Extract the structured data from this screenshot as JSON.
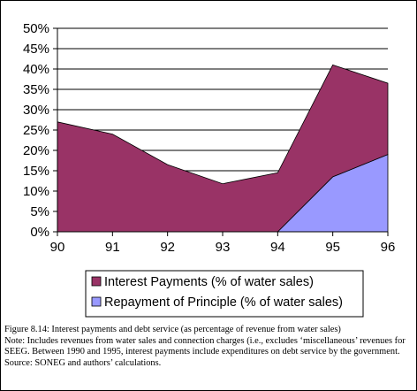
{
  "chart_data": {
    "type": "area",
    "stacked": true,
    "categories": [
      "90",
      "91",
      "92",
      "93",
      "94",
      "95",
      "96"
    ],
    "series": [
      {
        "name": "Repayment of Principle (% of water sales)",
        "color": "#9999ff",
        "values": [
          0,
          0,
          0,
          0,
          0,
          13.5,
          19
        ]
      },
      {
        "name": "Interest Payments (% of water sales)",
        "color": "#993366",
        "values": [
          27,
          24,
          16.5,
          11.8,
          14.5,
          27.5,
          17.5
        ]
      }
    ],
    "legend_order": [
      1,
      0
    ],
    "ylim": [
      0,
      50
    ],
    "yticks": [
      "0%",
      "5%",
      "10%",
      "15%",
      "20%",
      "25%",
      "30%",
      "35%",
      "40%",
      "45%",
      "50%"
    ],
    "grid": true,
    "legend_position": "bottom"
  },
  "caption": {
    "figure": "Figure 8.14: Interest payments and debt service (as percentage of revenue from water sales)",
    "note": "Note:   Includes revenues from water sales and connection charges (i.e., excludes ‘miscellaneous’ revenues for SEEG.  Between 1990 and 1995, interest payments include expenditures on debt service by the government.",
    "source": "Source: SONEG and authors’ calculations."
  }
}
